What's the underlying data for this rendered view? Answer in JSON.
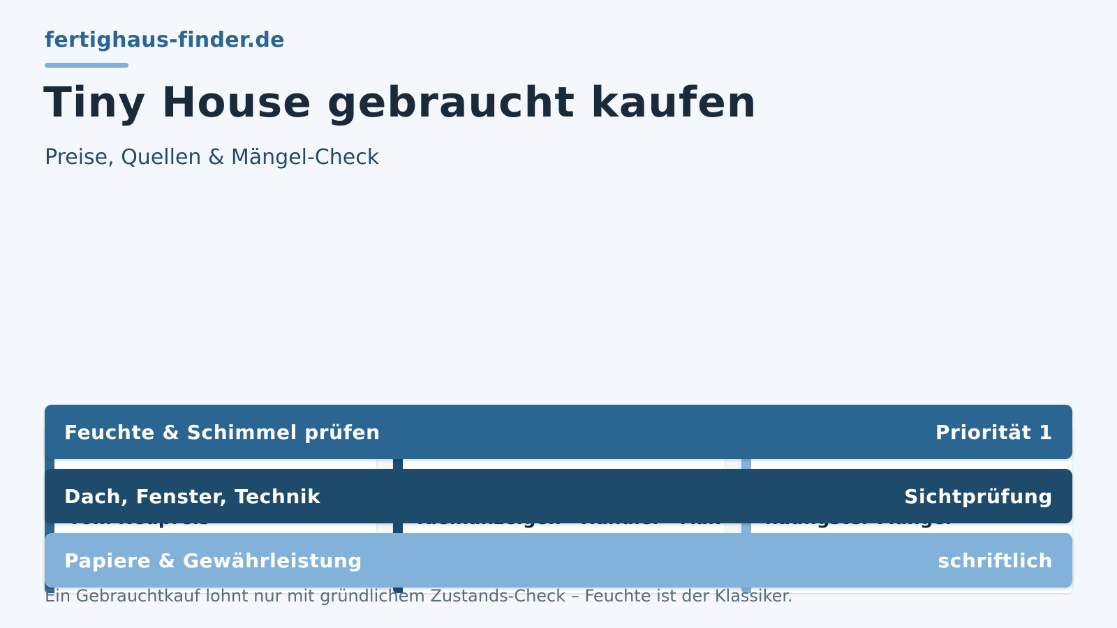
{
  "header": {
    "brand": "fertighaus-finder.de",
    "title": "Tiny House gebraucht kaufen",
    "subtitle": "Preise, Quellen & Mängel-Check"
  },
  "cards": [
    {
      "title": "vom Neupreis",
      "accent_color": "#2b6591"
    },
    {
      "title": "Kleinanzeigen · Händler · Auk",
      "accent_color": "#1e4a6b"
    },
    {
      "title": "häufigster Mangel",
      "accent_color": "#82b2da"
    }
  ],
  "bars": [
    {
      "label": "Feuchte & Schimmel prüfen",
      "tag": "Priorität 1",
      "color": "#2b6591"
    },
    {
      "label": "Dach, Fenster, Technik",
      "tag": "Sichtprüfung",
      "color": "#1e4a6b"
    },
    {
      "label": "Papiere & Gewährleistung",
      "tag": "schriftlich",
      "color": "#82b2da"
    }
  ],
  "footnote": "Ein Gebrauchtkauf lohnt nur mit gründlichem Zustands-Check – Feuchte ist der Klassiker."
}
